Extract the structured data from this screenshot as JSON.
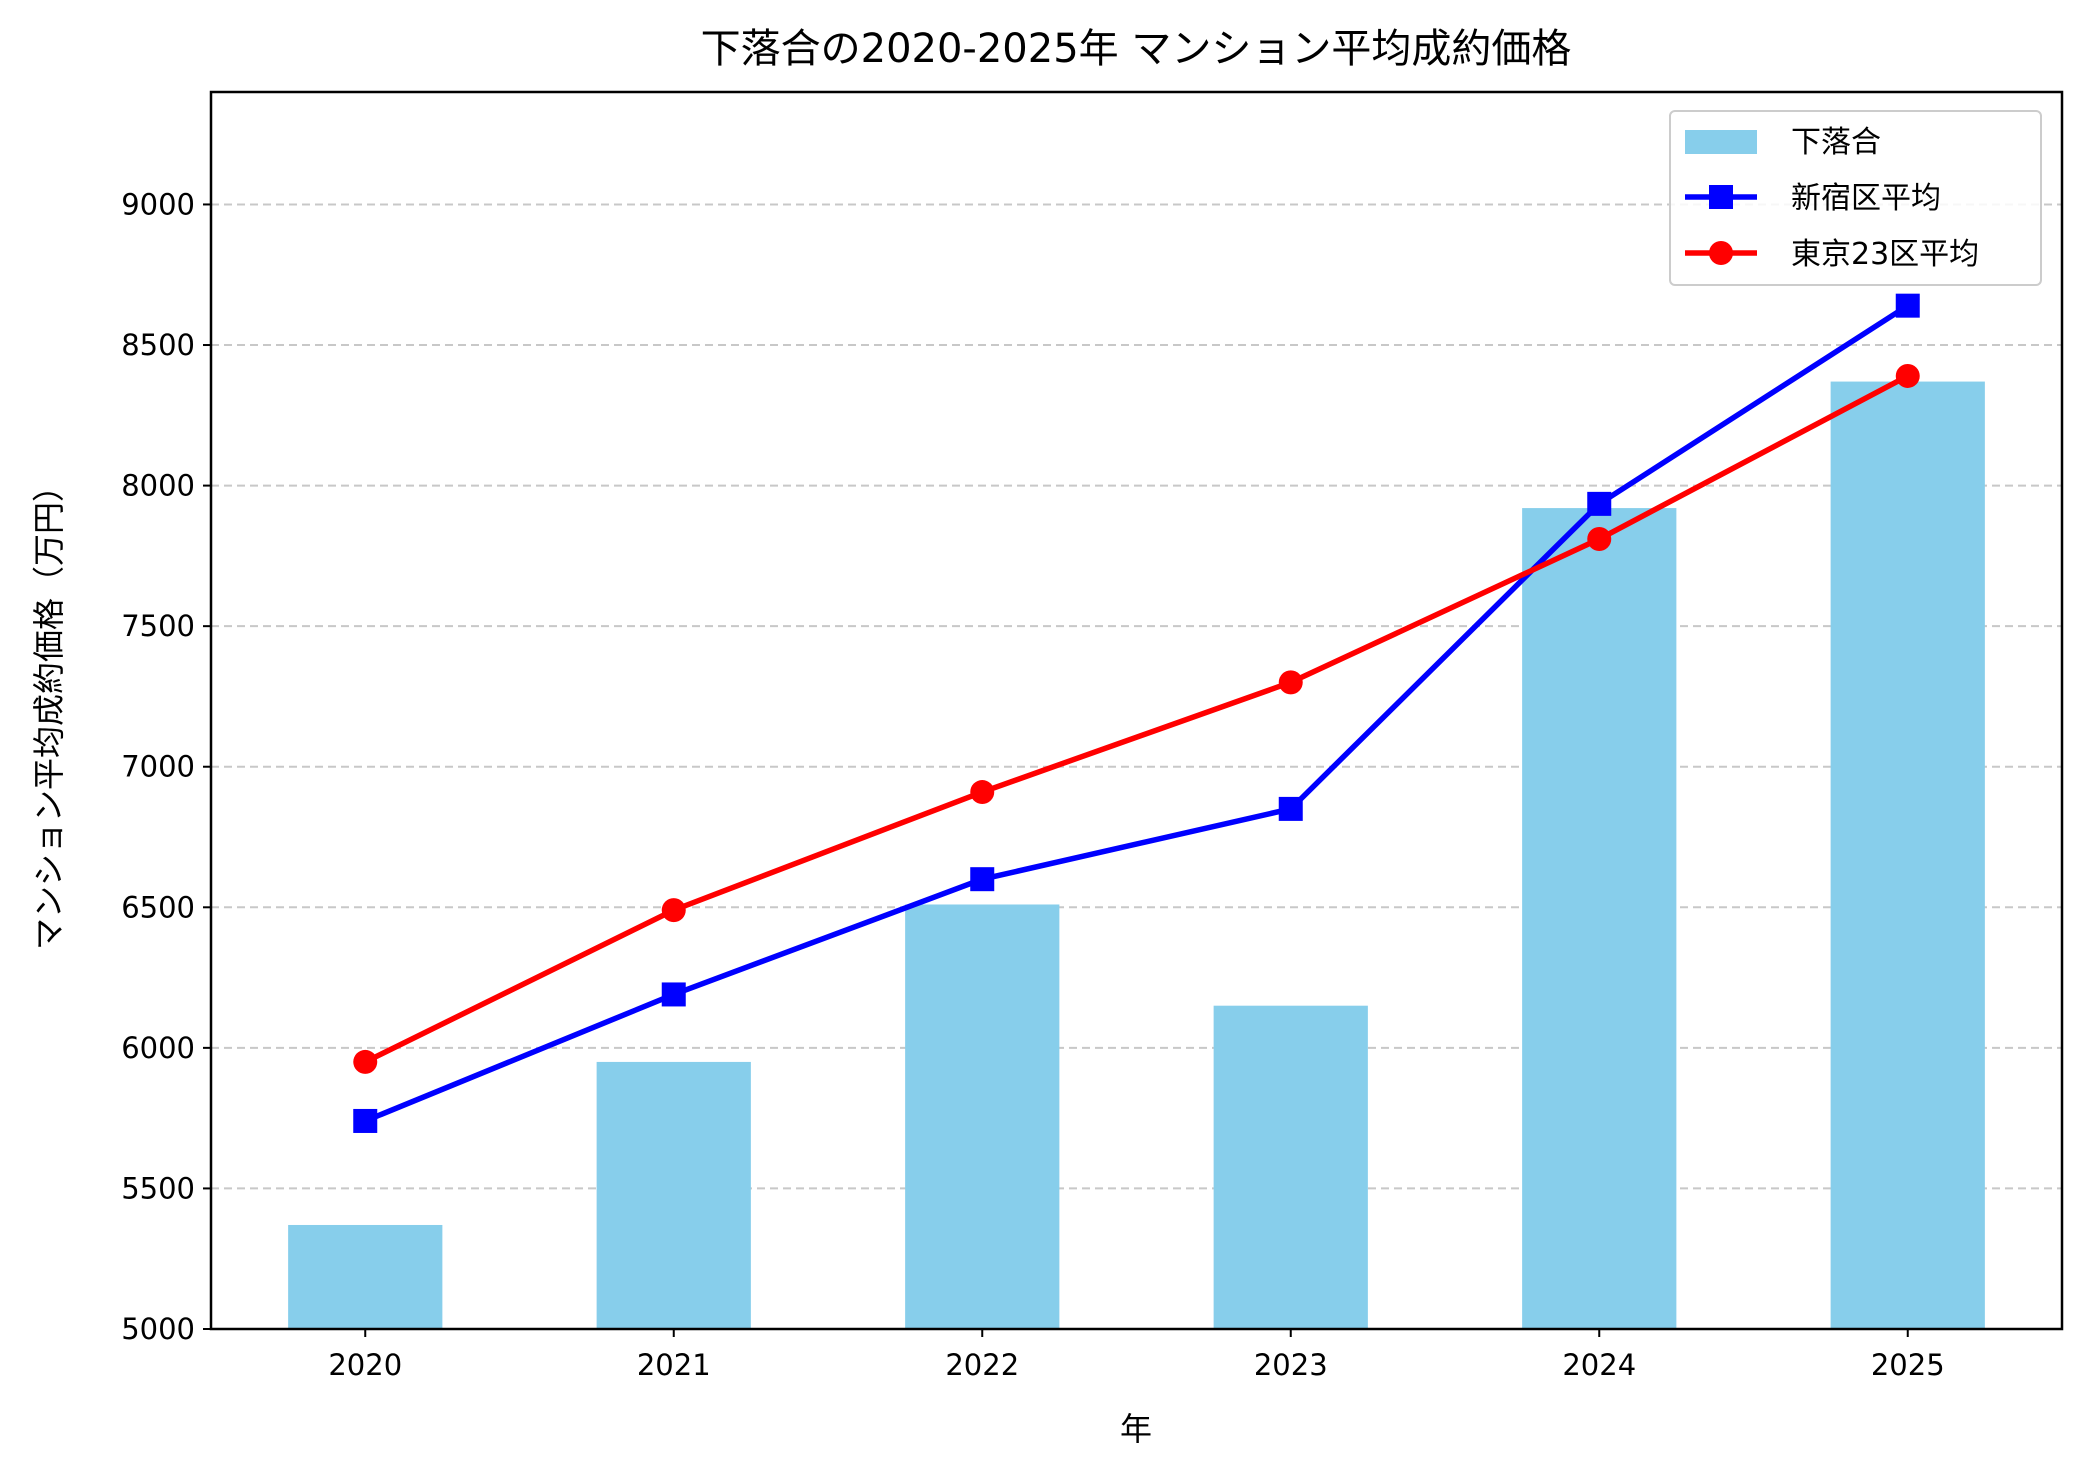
{
  "chart_data": {
    "type": "bar",
    "title": "下落合の2020-2025年 マンション平均成約価格",
    "xlabel": "年",
    "ylabel": "マンション平均成約価格（万円）",
    "categories": [
      "2020",
      "2021",
      "2022",
      "2023",
      "2024",
      "2025"
    ],
    "ylim": [
      5000,
      9400
    ],
    "yticks": [
      "5000",
      "5500",
      "6000",
      "6500",
      "7000",
      "7500",
      "8000",
      "8500",
      "9000"
    ],
    "grid": "y dashed",
    "legend_position": "top-right",
    "series": [
      {
        "name": "下落合",
        "type": "bar",
        "color": "#87CEEB",
        "values": [
          5370,
          5950,
          6510,
          6150,
          7920,
          8370
        ]
      },
      {
        "name": "新宿区平均",
        "type": "line",
        "marker": "square",
        "color": "#0000FF",
        "values": [
          5740,
          6190,
          6600,
          6850,
          7935,
          8640
        ]
      },
      {
        "name": "東京23区平均",
        "type": "line",
        "marker": "circle",
        "color": "#FF0000",
        "values": [
          5950,
          6490,
          6910,
          7300,
          7810,
          8390
        ]
      }
    ]
  }
}
